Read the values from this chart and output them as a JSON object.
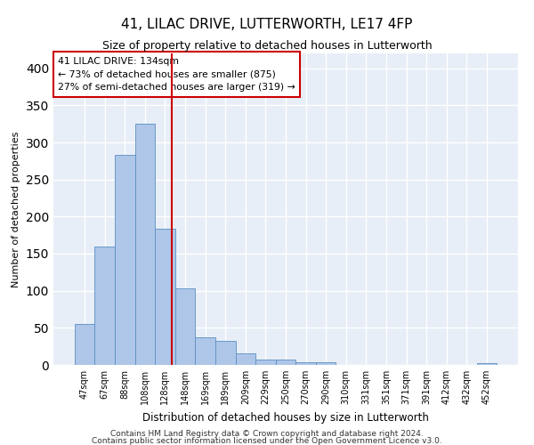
{
  "title": "41, LILAC DRIVE, LUTTERWORTH, LE17 4FP",
  "subtitle": "Size of property relative to detached houses in Lutterworth",
  "xlabel": "Distribution of detached houses by size in Lutterworth",
  "ylabel": "Number of detached properties",
  "bar_labels": [
    "47sqm",
    "67sqm",
    "88sqm",
    "108sqm",
    "128sqm",
    "148sqm",
    "169sqm",
    "189sqm",
    "209sqm",
    "229sqm",
    "250sqm",
    "270sqm",
    "290sqm",
    "310sqm",
    "331sqm",
    "351sqm",
    "371sqm",
    "391sqm",
    "412sqm",
    "432sqm",
    "452sqm"
  ],
  "bar_values": [
    55,
    160,
    283,
    325,
    184,
    103,
    37,
    33,
    16,
    7,
    7,
    4,
    4,
    0,
    0,
    0,
    0,
    0,
    0,
    0,
    3
  ],
  "bar_color": "#aec6e8",
  "bar_edge_color": "#5a8fc2",
  "property_label": "41 LILAC DRIVE: 134sqm",
  "annotation_line1": "← 73% of detached houses are smaller (875)",
  "annotation_line2": "27% of semi-detached houses are larger (319) →",
  "vline_color": "#cc0000",
  "vline_x": 4.35,
  "annotation_box_color": "#ffffff",
  "annotation_box_edge": "#cc0000",
  "ylim": [
    0,
    420
  ],
  "yticks": [
    0,
    50,
    100,
    150,
    200,
    250,
    300,
    350,
    400
  ],
  "background_color": "#e8eef7",
  "grid_color": "#ffffff",
  "footer_line1": "Contains HM Land Registry data © Crown copyright and database right 2024.",
  "footer_line2": "Contains public sector information licensed under the Open Government Licence v3.0."
}
